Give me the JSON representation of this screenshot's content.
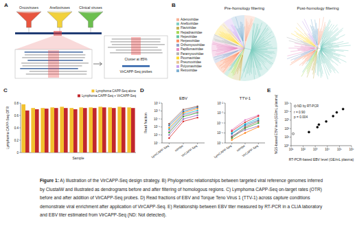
{
  "figure": {
    "panels": [
      "A",
      "B",
      "C",
      "D",
      "E"
    ],
    "caption_label": "Figure 1:",
    "caption": "A) Illustration of the VirCAPP-Seq design strategy. B) Phylogenetic relationships between targeted viral reference genomes inferred by ClustalW and illustrated as dendrograms before and after filtering of homologous regions. C) Lymphoma CAPP-Seq on-target rates (OTR) before and after addition of VirCAPP-Seq probes. D) Read fractions of EBV and Torque Teno Virus 1 (TTV-1) across capture conditions demonstrate viral enrichment after application of VirCAPP-Seq. E) Relationship between EBV titer measured by RT-PCR in a CLIA laboratory and EBV titer estimated from VirCAPP-Seq (ND: Not detected)."
  },
  "diagram_a": {
    "sources": [
      {
        "label": "Oncoviruses",
        "color": "#e8553e"
      },
      {
        "label": "Anelloviruses",
        "color": "#f2d13a"
      },
      {
        "label": "Clinical viruses",
        "color": "#6cbf4f"
      }
    ],
    "cluster_label": "Cluster at 85%",
    "probes_label": "VirCAPP-Seq probes"
  },
  "diagram_b": {
    "titles": [
      "Pre-homology filtering",
      "Post-homology filtering"
    ],
    "legend": [
      {
        "name": "Adenoviridae",
        "color": "#f8b195"
      },
      {
        "name": "Anelloviridae",
        "color": "#7fcdc1"
      },
      {
        "name": "Flaviviridae",
        "color": "#c5b358"
      },
      {
        "name": "Hepadnaviridae",
        "color": "#a6d854"
      },
      {
        "name": "Hepeviridae",
        "color": "#66c2a5"
      },
      {
        "name": "Herpesviridae",
        "color": "#fc8d62"
      },
      {
        "name": "Orthomyxoviridae",
        "color": "#8da0cb"
      },
      {
        "name": "Papillomaviridae",
        "color": "#e78ac3"
      },
      {
        "name": "Paramyxoviridae",
        "color": "#b3b3b3"
      },
      {
        "name": "Picornaviridae",
        "color": "#ffd92f"
      },
      {
        "name": "Pneumoviridae",
        "color": "#e5c494"
      },
      {
        "name": "Polyomaviridae",
        "color": "#c9a3f0"
      },
      {
        "name": "Retroviridae",
        "color": "#80b1d3"
      }
    ]
  },
  "chart_data": [
    {
      "type": "bar",
      "x_label": "Sample",
      "y_label": "Lymphoma CAPP-Seq OTR",
      "categories": [
        null,
        null,
        null,
        null,
        null,
        null,
        null,
        null,
        null,
        null,
        null,
        null
      ],
      "series": [
        {
          "name": "Lymphoma CAPP-Seq alone",
          "color": "#f2c12e",
          "values": [
            0.78,
            0.72,
            0.72,
            0.73,
            0.74,
            0.72,
            0.73,
            0.73,
            0.74,
            0.73,
            0.74,
            0.73
          ]
        },
        {
          "name": "Lymphoma CAPP-Seq + VirCAPP-Seq",
          "color": "#c1272d",
          "values": [
            0.68,
            0.7,
            0.71,
            0.72,
            0.72,
            0.7,
            0.72,
            0.72,
            0.73,
            0.72,
            0.73,
            0.72
          ]
        }
      ],
      "ylim": [
        0,
        0.8
      ],
      "yticks": [
        0,
        0.2,
        0.4,
        0.6,
        0.8
      ],
      "legend": "top-right",
      "tick_labels": "y"
    },
    {
      "type": "line",
      "title": "EBV",
      "y_label": "Read fraction",
      "categories": [
        "LymCAPP-Seq",
        "combo",
        "VirCAPP-Seq"
      ],
      "log": "y",
      "marker": "circle",
      "ylim": [
        1e-07,
        0.01
      ],
      "yticks": [
        {
          "value": 1e-07,
          "label": "10⁻⁷"
        },
        {
          "value": 1e-06,
          "label": "10⁻⁶"
        },
        {
          "value": 1e-05,
          "label": "10⁻⁵"
        },
        {
          "value": 0.0001,
          "label": "10⁻⁴"
        },
        {
          "value": 0.001,
          "label": "10⁻³"
        },
        {
          "value": 0.01,
          "label": "10⁻²"
        }
      ],
      "series": [
        {
          "color": "#2ca02c",
          "values": [
            2e-06,
            0.0002,
            0.0006
          ]
        },
        {
          "color": "#17becf",
          "values": [
            5e-06,
            0.0004,
            0.0012
          ]
        },
        {
          "color": "#9467bd",
          "values": [
            1e-06,
            0.0001,
            0.0003
          ]
        },
        {
          "color": "#e377c2",
          "values": [
            3e-06,
            0.0003,
            0.0008
          ]
        },
        {
          "color": "#ff7f0e",
          "values": [
            8e-06,
            0.0006,
            0.002
          ]
        },
        {
          "color": "#1f77b4",
          "values": [
            1.5e-05,
            0.0009,
            0.003
          ]
        },
        {
          "color": "#d62728",
          "values": [
            4e-07,
            5e-05,
            0.00015
          ]
        },
        {
          "color": "#8c564b",
          "values": [
            2.5e-05,
            0.0015,
            0.004
          ]
        }
      ]
    },
    {
      "type": "line",
      "title": "TTV-1",
      "categories": [
        "LymCAPP-Seq",
        "combo",
        "VirCAPP-Seq"
      ],
      "log": "y",
      "marker": "circle",
      "ylim": [
        1e-06,
        0.01
      ],
      "yticks": [
        {
          "value": 1e-06,
          "label": "10⁻⁶"
        },
        {
          "value": 1e-05,
          "label": "10⁻⁵"
        },
        {
          "value": 0.0001,
          "label": "10⁻⁴"
        },
        {
          "value": 0.001,
          "label": "10⁻³"
        },
        {
          "value": 0.01,
          "label": "10⁻²"
        }
      ],
      "series": [
        {
          "color": "#2ca02c",
          "values": [
            3e-06,
            3e-05,
            0.0001
          ]
        },
        {
          "color": "#17becf",
          "values": [
            1e-05,
            8e-05,
            0.0003
          ]
        },
        {
          "color": "#9467bd",
          "values": [
            5e-06,
            2e-05,
            5e-05
          ]
        },
        {
          "color": "#e377c2",
          "values": [
            2e-05,
            0.0002,
            0.0006
          ]
        },
        {
          "color": "#ff7f0e",
          "values": [
            2e-06,
            1e-05,
            4e-05
          ]
        },
        {
          "color": "#1f77b4",
          "values": [
            8e-06,
            6e-05,
            0.0002
          ]
        },
        {
          "color": "#d62728",
          "values": [
            1.5e-05,
            0.00012,
            0.0005
          ]
        },
        {
          "color": "#8c564b",
          "values": [
            4e-06,
            4e-05,
            0.00015
          ]
        }
      ]
    },
    {
      "type": "scatter",
      "x_label": "RT-PCR-based EBV level (GE/mL plasma)",
      "y_label": "NGS-based EBV level (GE/mL plasma)",
      "log": true,
      "xlim": [
        10,
        1000000
      ],
      "ylim": [
        1,
        100000
      ],
      "xticks": [
        {
          "value": 10,
          "label": "10¹"
        },
        {
          "value": 100,
          "label": "10²"
        },
        {
          "value": 1000,
          "label": "10³"
        },
        {
          "value": 10000,
          "label": "10⁴"
        },
        {
          "value": 100000,
          "label": "10⁵"
        },
        {
          "value": 1000000,
          "label": "10⁶"
        }
      ],
      "yticks": [
        {
          "value": 1,
          "label": "10⁰"
        },
        {
          "value": 10,
          "label": "10¹"
        },
        {
          "value": 100,
          "label": "10²"
        },
        {
          "value": 1000,
          "label": "10³"
        },
        {
          "value": 10000,
          "label": "10⁴"
        },
        {
          "value": 100000,
          "label": "10⁵"
        }
      ],
      "annotations": [
        "r = 0.90",
        "p = 0.004"
      ],
      "legend": "top-left",
      "series": [
        {
          "color": "#000000",
          "marker": "circle",
          "x": [
            300,
            1500,
            2000,
            8000,
            30000,
            60000,
            200000
          ],
          "values": [
            40,
            150,
            300,
            700,
            3000,
            8000,
            20000
          ]
        },
        {
          "name": "ND by RT-PCR",
          "color": "#000000",
          "marker": "open-circle",
          "x": [
            15
          ],
          "values": [
            25
          ]
        }
      ]
    }
  ]
}
